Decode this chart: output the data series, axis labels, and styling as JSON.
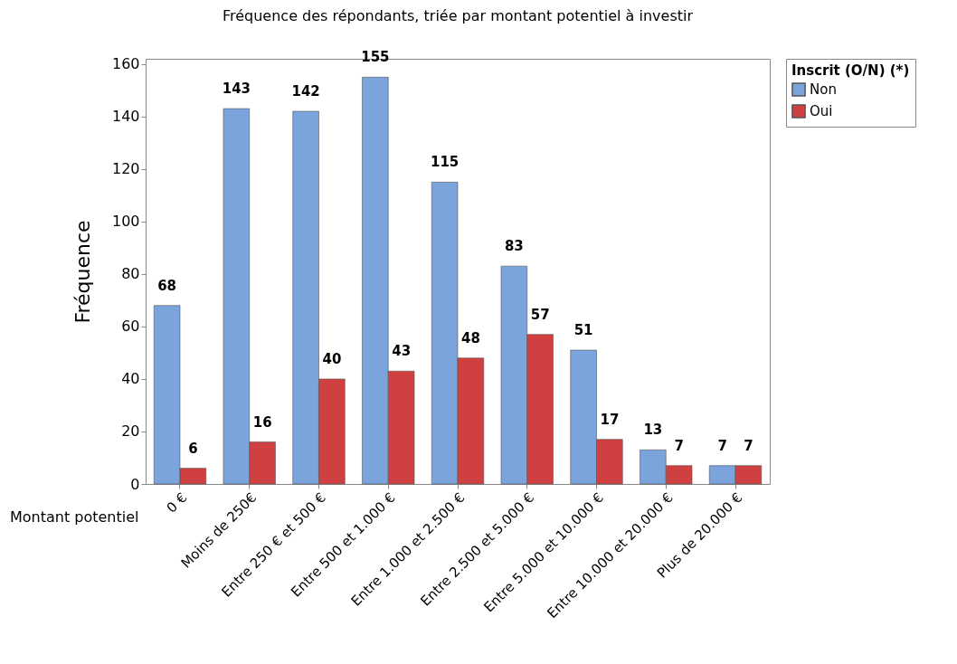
{
  "chart_data": {
    "type": "bar",
    "title": "Fréquence des répondants, triée par montant potentiel à investir",
    "xlabel": "Montant potentiel",
    "ylabel": "Fréquence",
    "legend_title": "Inscrit (O/N) (*)",
    "categories": [
      "0 €",
      "Moins de 250€",
      "Entre 250 € et 500 €",
      "Entre 500 et 1.000 €",
      "Entre 1.000 et 2.500 €",
      "Entre 2.500 et 5.000 €",
      "Entre 5.000 et 10.000 €",
      "Entre 10.000 et 20.000 €",
      "Plus de 20.000 €"
    ],
    "series": [
      {
        "name": "Non",
        "color": "#7ba3dc",
        "values": [
          68,
          143,
          142,
          155,
          115,
          83,
          51,
          13,
          7
        ]
      },
      {
        "name": "Oui",
        "color": "#d04040",
        "values": [
          6,
          16,
          40,
          43,
          48,
          57,
          17,
          7,
          7
        ]
      }
    ],
    "ylim": [
      0,
      162
    ],
    "yticks": [
      0,
      20,
      40,
      60,
      80,
      100,
      120,
      140,
      160
    ],
    "grid": false,
    "legend": "top right",
    "data_labels": true
  }
}
